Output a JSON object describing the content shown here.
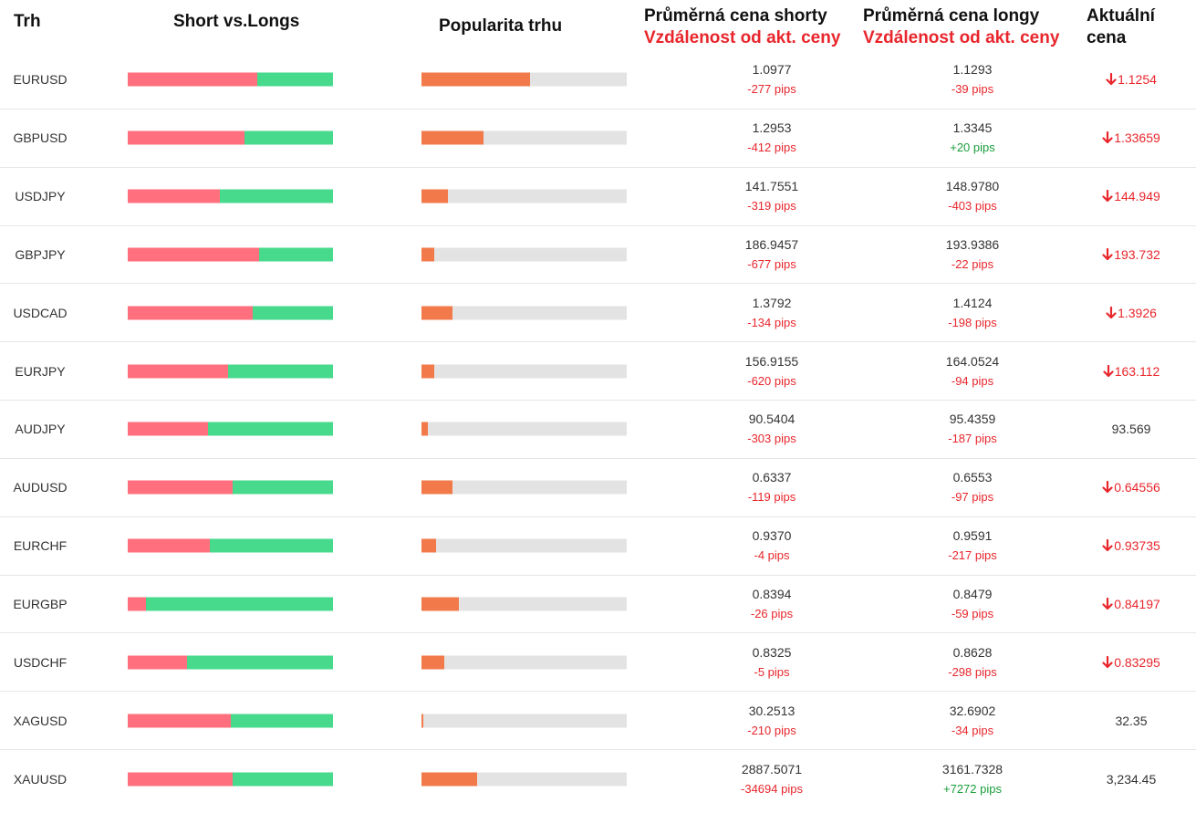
{
  "header": {
    "market": "Trh",
    "short_vs_long": "Short vs.Longs",
    "popularity": "Popularita trhu",
    "avg_short": "Průměrná cena shorty",
    "avg_short_sub": "Vzdálenost od akt. ceny",
    "avg_long": "Průměrná cena longy",
    "avg_long_sub": "Vzdálenost od akt. ceny",
    "current_line1": "Aktuální",
    "current_line2": "cena"
  },
  "colors": {
    "short": "#ff6f7d",
    "long": "#47d98c",
    "popularity": "#f27a4a",
    "track": "#e3e3e3",
    "negative": "#e8262c",
    "positive": "#1a9e3a"
  },
  "rows": [
    {
      "symbol": "EURUSD",
      "short_pct": 63,
      "popularity_pct": 53,
      "short_price": "1.0977",
      "short_dist": "-277 pips",
      "long_price": "1.1293",
      "long_dist": "-39 pips",
      "current": "1.1254",
      "trend": "down"
    },
    {
      "symbol": "GBPUSD",
      "short_pct": 57,
      "popularity_pct": 30,
      "short_price": "1.2953",
      "short_dist": "-412 pips",
      "long_price": "1.3345",
      "long_dist": "+20 pips",
      "current": "1.33659",
      "trend": "down"
    },
    {
      "symbol": "USDJPY",
      "short_pct": 45,
      "popularity_pct": 13,
      "short_price": "141.7551",
      "short_dist": "-319 pips",
      "long_price": "148.9780",
      "long_dist": "-403 pips",
      "current": "144.949",
      "trend": "down"
    },
    {
      "symbol": "GBPJPY",
      "short_pct": 64,
      "popularity_pct": 6,
      "short_price": "186.9457",
      "short_dist": "-677 pips",
      "long_price": "193.9386",
      "long_dist": "-22 pips",
      "current": "193.732",
      "trend": "down"
    },
    {
      "symbol": "USDCAD",
      "short_pct": 61,
      "popularity_pct": 15,
      "short_price": "1.3792",
      "short_dist": "-134 pips",
      "long_price": "1.4124",
      "long_dist": "-198 pips",
      "current": "1.3926",
      "trend": "down"
    },
    {
      "symbol": "EURJPY",
      "short_pct": 49,
      "popularity_pct": 6,
      "short_price": "156.9155",
      "short_dist": "-620 pips",
      "long_price": "164.0524",
      "long_dist": "-94 pips",
      "current": "163.112",
      "trend": "down"
    },
    {
      "symbol": "AUDJPY",
      "short_pct": 39,
      "popularity_pct": 3,
      "short_price": "90.5404",
      "short_dist": "-303 pips",
      "long_price": "95.4359",
      "long_dist": "-187 pips",
      "current": "93.569",
      "trend": "none"
    },
    {
      "symbol": "AUDUSD",
      "short_pct": 51,
      "popularity_pct": 15,
      "short_price": "0.6337",
      "short_dist": "-119 pips",
      "long_price": "0.6553",
      "long_dist": "-97 pips",
      "current": "0.64556",
      "trend": "down"
    },
    {
      "symbol": "EURCHF",
      "short_pct": 40,
      "popularity_pct": 7,
      "short_price": "0.9370",
      "short_dist": "-4 pips",
      "long_price": "0.9591",
      "long_dist": "-217 pips",
      "current": "0.93735",
      "trend": "down"
    },
    {
      "symbol": "EURGBP",
      "short_pct": 9,
      "popularity_pct": 18,
      "short_price": "0.8394",
      "short_dist": "-26 pips",
      "long_price": "0.8479",
      "long_dist": "-59 pips",
      "current": "0.84197",
      "trend": "down"
    },
    {
      "symbol": "USDCHF",
      "short_pct": 29,
      "popularity_pct": 11,
      "short_price": "0.8325",
      "short_dist": "-5 pips",
      "long_price": "0.8628",
      "long_dist": "-298 pips",
      "current": "0.83295",
      "trend": "down"
    },
    {
      "symbol": "XAGUSD",
      "short_pct": 50,
      "popularity_pct": 1,
      "short_price": "30.2513",
      "short_dist": "-210 pips",
      "long_price": "32.6902",
      "long_dist": "-34 pips",
      "current": "32.35",
      "trend": "none"
    },
    {
      "symbol": "XAUUSD",
      "short_pct": 51,
      "popularity_pct": 27,
      "short_price": "2887.5071",
      "short_dist": "-34694 pips",
      "long_price": "3161.7328",
      "long_dist": "+7272 pips",
      "current": "3,234.45",
      "trend": "none"
    }
  ]
}
